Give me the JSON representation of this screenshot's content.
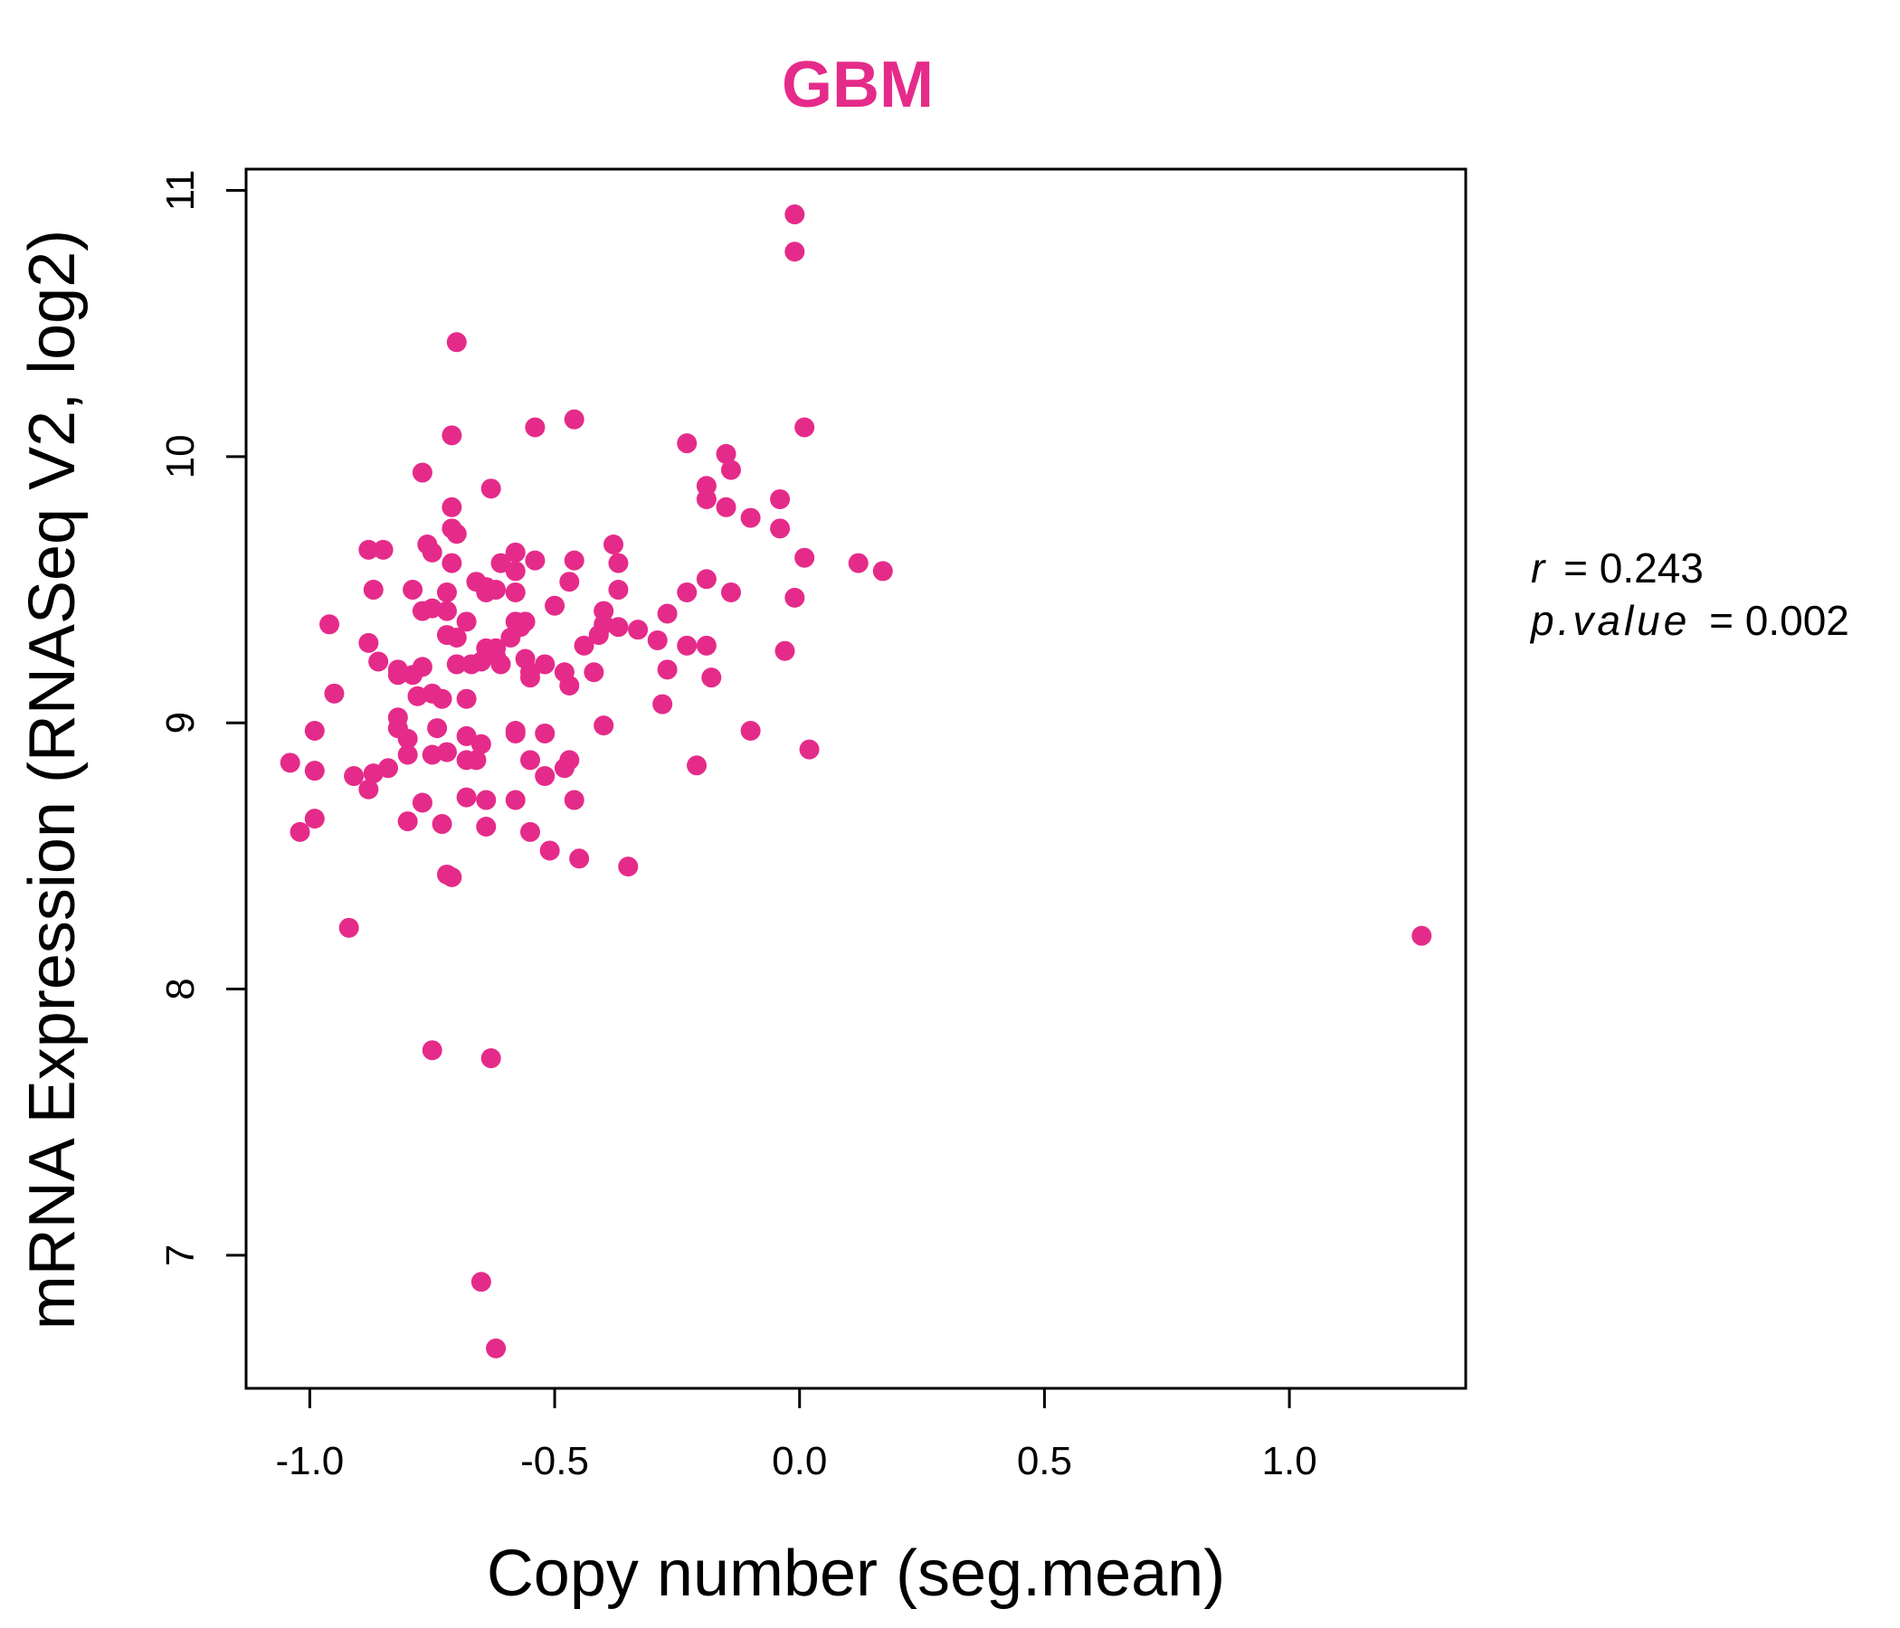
{
  "chart_data": {
    "type": "scatter",
    "title": "GBM",
    "xlabel": "Copy number (seg.mean)",
    "ylabel": "mRNA Expression (RNASeq V2, log2)",
    "xlim": [
      -1.13,
      1.36
    ],
    "ylim": [
      6.5,
      11.08
    ],
    "x_ticks": [
      -1.0,
      -0.5,
      0.0,
      0.5,
      1.0
    ],
    "x_tick_labels": [
      "-1.0",
      "-0.5",
      "0.0",
      "0.5",
      "1.0"
    ],
    "y_ticks": [
      7,
      8,
      9,
      10,
      11
    ],
    "y_tick_labels": [
      "7",
      "8",
      "9",
      "10",
      "11"
    ],
    "point_color": "#e52b8a",
    "title_color": "#e52b8a",
    "annotation": {
      "r_label": "r",
      "r_value": "= 0.243",
      "p_label": "p.value",
      "p_value": "= 0.002"
    },
    "points": [
      [
        -0.01,
        10.91
      ],
      [
        -0.01,
        10.77
      ],
      [
        -0.7,
        10.43
      ],
      [
        -0.54,
        10.11
      ],
      [
        -0.46,
        10.14
      ],
      [
        -0.71,
        10.08
      ],
      [
        -0.23,
        10.05
      ],
      [
        0.01,
        10.11
      ],
      [
        -0.15,
        10.01
      ],
      [
        -0.14,
        9.95
      ],
      [
        -0.77,
        9.94
      ],
      [
        -0.19,
        9.89
      ],
      [
        -0.19,
        9.84
      ],
      [
        -0.15,
        9.81
      ],
      [
        -0.63,
        9.88
      ],
      [
        -0.71,
        9.81
      ],
      [
        -0.1,
        9.77
      ],
      [
        -0.04,
        9.84
      ],
      [
        -0.04,
        9.73
      ],
      [
        -0.71,
        9.73
      ],
      [
        -0.7,
        9.71
      ],
      [
        -0.76,
        9.67
      ],
      [
        -0.75,
        9.64
      ],
      [
        -0.88,
        9.65
      ],
      [
        -0.85,
        9.65
      ],
      [
        -0.38,
        9.67
      ],
      [
        -0.58,
        9.64
      ],
      [
        -0.61,
        9.6
      ],
      [
        -0.54,
        9.61
      ],
      [
        -0.46,
        9.61
      ],
      [
        -0.71,
        9.6
      ],
      [
        -0.37,
        9.6
      ],
      [
        0.01,
        9.62
      ],
      [
        0.12,
        9.6
      ],
      [
        0.17,
        9.57
      ],
      [
        -0.58,
        9.57
      ],
      [
        -0.66,
        9.53
      ],
      [
        -0.47,
        9.53
      ],
      [
        -0.19,
        9.54
      ],
      [
        -0.64,
        9.51
      ],
      [
        -0.62,
        9.5
      ],
      [
        -0.64,
        9.49
      ],
      [
        -0.87,
        9.5
      ],
      [
        -0.79,
        9.5
      ],
      [
        -0.72,
        9.49
      ],
      [
        -0.58,
        9.49
      ],
      [
        -0.37,
        9.5
      ],
      [
        -0.23,
        9.49
      ],
      [
        -0.14,
        9.49
      ],
      [
        -0.01,
        9.47
      ],
      [
        -0.75,
        9.43
      ],
      [
        -0.77,
        9.42
      ],
      [
        -0.72,
        9.42
      ],
      [
        -0.5,
        9.44
      ],
      [
        -0.4,
        9.42
      ],
      [
        -0.27,
        9.41
      ],
      [
        -0.96,
        9.37
      ],
      [
        -0.68,
        9.38
      ],
      [
        -0.58,
        9.38
      ],
      [
        -0.56,
        9.38
      ],
      [
        -0.57,
        9.36
      ],
      [
        -0.4,
        9.37
      ],
      [
        -0.37,
        9.36
      ],
      [
        -0.33,
        9.35
      ],
      [
        -0.41,
        9.33
      ],
      [
        -0.72,
        9.33
      ],
      [
        -0.7,
        9.32
      ],
      [
        -0.59,
        9.32
      ],
      [
        -0.88,
        9.3
      ],
      [
        -0.64,
        9.28
      ],
      [
        -0.62,
        9.28
      ],
      [
        -0.44,
        9.29
      ],
      [
        -0.29,
        9.31
      ],
      [
        -0.23,
        9.29
      ],
      [
        -0.19,
        9.29
      ],
      [
        -0.03,
        9.27
      ],
      [
        -0.86,
        9.23
      ],
      [
        -0.7,
        9.22
      ],
      [
        -0.67,
        9.22
      ],
      [
        -0.65,
        9.23
      ],
      [
        -0.62,
        9.25
      ],
      [
        -0.61,
        9.22
      ],
      [
        -0.56,
        9.24
      ],
      [
        -0.52,
        9.22
      ],
      [
        -0.82,
        9.2
      ],
      [
        -0.77,
        9.21
      ],
      [
        -0.79,
        9.18
      ],
      [
        -0.82,
        9.18
      ],
      [
        -0.55,
        9.19
      ],
      [
        -0.48,
        9.19
      ],
      [
        -0.42,
        9.19
      ],
      [
        -0.27,
        9.2
      ],
      [
        -0.18,
        9.17
      ],
      [
        -0.55,
        9.17
      ],
      [
        -0.47,
        9.14
      ],
      [
        -0.95,
        9.11
      ],
      [
        -0.78,
        9.1
      ],
      [
        -0.75,
        9.11
      ],
      [
        -0.73,
        9.09
      ],
      [
        -0.68,
        9.09
      ],
      [
        -0.28,
        9.07
      ],
      [
        -0.82,
        9.02
      ],
      [
        -0.99,
        8.97
      ],
      [
        -0.82,
        8.98
      ],
      [
        -0.74,
        8.98
      ],
      [
        -0.58,
        8.97
      ],
      [
        -0.58,
        8.96
      ],
      [
        -0.52,
        8.96
      ],
      [
        -0.4,
        8.99
      ],
      [
        -0.1,
        8.97
      ],
      [
        -0.68,
        8.95
      ],
      [
        -0.8,
        8.94
      ],
      [
        -0.65,
        8.92
      ],
      [
        -0.8,
        8.88
      ],
      [
        -0.75,
        8.88
      ],
      [
        -0.72,
        8.89
      ],
      [
        -0.68,
        8.86
      ],
      [
        -0.66,
        8.86
      ],
      [
        -0.55,
        8.86
      ],
      [
        -0.47,
        8.86
      ],
      [
        0.02,
        8.9
      ],
      [
        -1.04,
        8.85
      ],
      [
        -0.99,
        8.82
      ],
      [
        -0.84,
        8.83
      ],
      [
        -0.87,
        8.81
      ],
      [
        -0.91,
        8.8
      ],
      [
        -0.48,
        8.83
      ],
      [
        -0.52,
        8.8
      ],
      [
        -0.21,
        8.84
      ],
      [
        -0.88,
        8.75
      ],
      [
        -0.77,
        8.7
      ],
      [
        -0.68,
        8.72
      ],
      [
        -0.64,
        8.71
      ],
      [
        -0.58,
        8.71
      ],
      [
        -0.46,
        8.71
      ],
      [
        -0.99,
        8.64
      ],
      [
        -1.02,
        8.59
      ],
      [
        -0.8,
        8.63
      ],
      [
        -0.73,
        8.62
      ],
      [
        -0.64,
        8.61
      ],
      [
        -0.55,
        8.59
      ],
      [
        -0.51,
        8.52
      ],
      [
        -0.45,
        8.49
      ],
      [
        -0.35,
        8.46
      ],
      [
        -0.72,
        8.43
      ],
      [
        -0.71,
        8.42
      ],
      [
        -0.92,
        8.23
      ],
      [
        1.27,
        8.2
      ],
      [
        -0.75,
        7.77
      ],
      [
        -0.63,
        7.74
      ],
      [
        -0.65,
        6.9
      ],
      [
        -0.62,
        6.65
      ]
    ]
  }
}
